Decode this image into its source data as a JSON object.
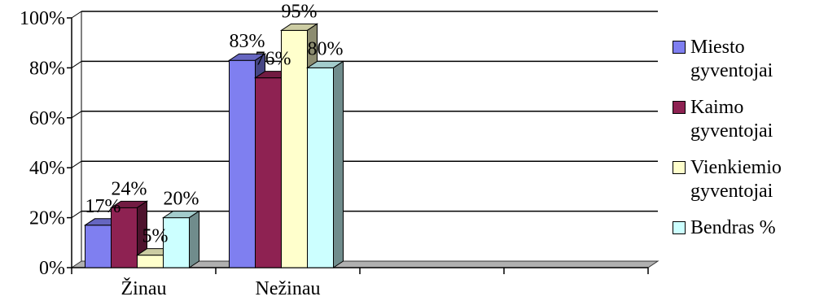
{
  "chart_data": {
    "type": "bar",
    "categories": [
      "Žinau",
      "Nežinau"
    ],
    "series": [
      {
        "name": "Miesto gyventojai",
        "values": [
          17,
          83
        ],
        "labels": [
          "17%",
          "83%"
        ],
        "color": "#7F7FF0"
      },
      {
        "name": "Kaimo gyventojai",
        "values": [
          24,
          76
        ],
        "labels": [
          "24%",
          "76%"
        ],
        "color": "#8E2252"
      },
      {
        "name": "Vienkiemio gyventojai",
        "values": [
          5,
          95
        ],
        "labels": [
          "5%",
          "95%"
        ],
        "color": "#FFFFCC"
      },
      {
        "name": "Bendras %",
        "values": [
          20,
          80
        ],
        "labels": [
          "20%",
          "80%"
        ],
        "color": "#CCFFFF"
      }
    ],
    "y_ticks": [
      "0%",
      "20%",
      "40%",
      "60%",
      "80%",
      "100%"
    ],
    "ylim": [
      0,
      100
    ],
    "category_slots": 4,
    "grid": true,
    "legend_position": "right",
    "style": "3d-clustered-column"
  },
  "legend": {
    "items": [
      {
        "line1": "Miesto",
        "line2": "gyventojai",
        "color": "#7F7FF0"
      },
      {
        "line1": "Kaimo",
        "line2": "gyventojai",
        "color": "#8E2252"
      },
      {
        "line1": "Vienkiemio",
        "line2": "gyventojai",
        "color": "#FFFFCC"
      },
      {
        "line1": "Bendras %",
        "line2": "",
        "color": "#CCFFFF"
      }
    ]
  }
}
